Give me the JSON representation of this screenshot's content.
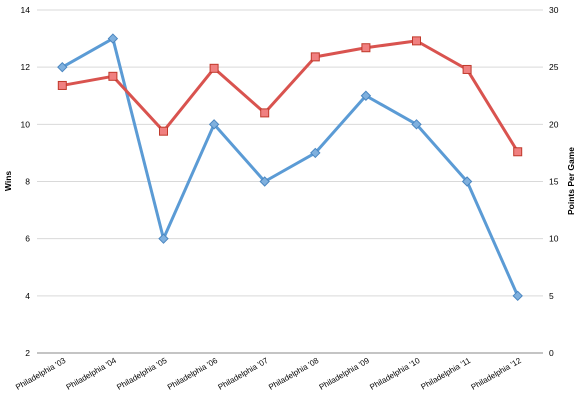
{
  "chart_data": {
    "type": "line",
    "title": "",
    "categories": [
      "Philadelphia '03",
      "Philadelphia '04",
      "Philadelphia '05",
      "Philadelphia '06",
      "Philadelphia '07",
      "Philadelphia '08",
      "Philadelphia '09",
      "Philadelphia '10",
      "Philadelphia '11",
      "Philadelphia '12"
    ],
    "ylabel": "Wins",
    "ylabel_right": "Points Per Game",
    "ylim": [
      2,
      14
    ],
    "yticks": [
      "2",
      "4",
      "6",
      "8",
      "10",
      "12",
      "14"
    ],
    "ylim_right": [
      0,
      30
    ],
    "yticks_right": [
      "0",
      "5",
      "10",
      "15",
      "20",
      "25",
      "30"
    ],
    "grid": "horizontal",
    "legend": "none",
    "series": [
      {
        "axis": "left",
        "color": "#5b9bd5",
        "marker": "diamond",
        "values": [
          12,
          13,
          6,
          10,
          8,
          9,
          11,
          10,
          8,
          4
        ]
      },
      {
        "axis": "right",
        "color": "#d9534f",
        "marker": "square",
        "values": [
          23.4,
          24.2,
          19.4,
          24.9,
          21.0,
          25.9,
          26.7,
          27.3,
          24.8,
          17.6
        ]
      }
    ]
  }
}
